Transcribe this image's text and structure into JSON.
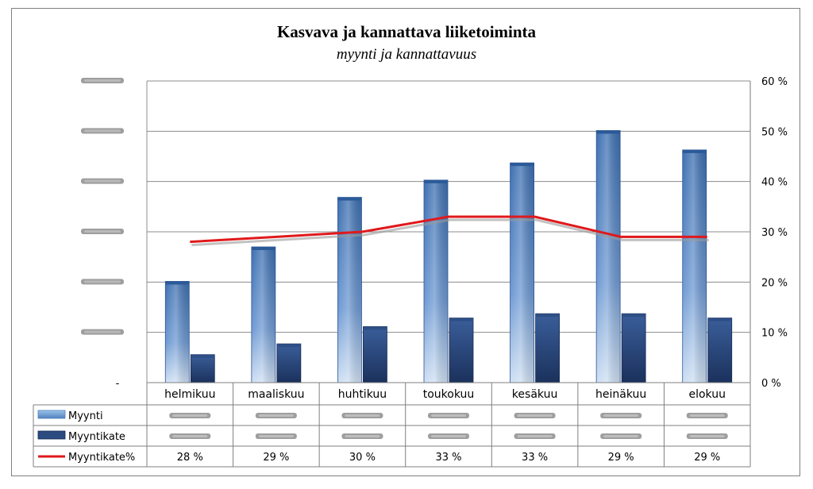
{
  "chart_data": {
    "type": "bar",
    "title": "Kasvava ja kannattava liiketoiminta",
    "subtitle": "myynti ja kannattavuus",
    "categories": [
      "helmikuu",
      "maaliskuu",
      "huhtikuu",
      "toukokuu",
      "kesäkuu",
      "heinäkuu",
      "elokuu"
    ],
    "left_axis": {
      "tick_labels": [
        "",
        "",
        "",
        "",
        "",
        "",
        "-"
      ],
      "note": "left axis values obscured (blurred) except bottom '-'",
      "ylim": [
        0,
        7
      ]
    },
    "right_axis": {
      "tick_labels": [
        "60 %",
        "50 %",
        "40 %",
        "30 %",
        "20 %",
        "10 %",
        "0 %"
      ],
      "ylim": [
        0,
        60
      ]
    },
    "series": [
      {
        "name": "Myynti",
        "type": "bar",
        "axis": "left",
        "values": [
          2.35,
          3.15,
          4.3,
          4.7,
          5.1,
          5.85,
          5.4
        ],
        "color": "#4f81bd"
      },
      {
        "name": "Myyntikate",
        "type": "bar",
        "axis": "left",
        "values": [
          0.65,
          0.9,
          1.3,
          1.5,
          1.6,
          1.6,
          1.5
        ],
        "color": "#1f3e74"
      },
      {
        "name": "Myyntikate%",
        "type": "line",
        "axis": "right",
        "values": [
          28,
          29,
          30,
          33,
          33,
          29,
          29
        ],
        "color": "#e0191b"
      }
    ],
    "table": {
      "rows": [
        {
          "label": "Myynti",
          "values": [
            "",
            "",
            "",
            "",
            "",
            "",
            ""
          ]
        },
        {
          "label": "Myyntikate",
          "values": [
            "",
            "",
            "",
            "",
            "",
            "",
            ""
          ]
        },
        {
          "label": "Myyntikate%",
          "values": [
            "28 %",
            "29 %",
            "30 %",
            "33 %",
            "33 %",
            "29 %",
            "29 %"
          ]
        }
      ]
    },
    "grid": true,
    "legend": "data-table"
  }
}
